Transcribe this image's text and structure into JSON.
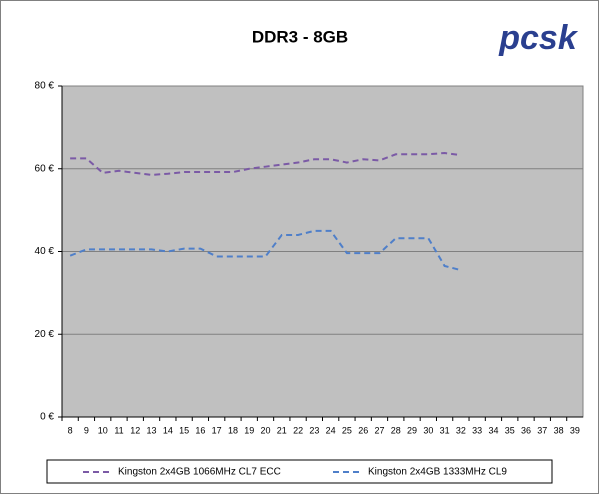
{
  "logo": "pcsk",
  "chart_data": {
    "type": "line",
    "title": "DDR3 - 8GB",
    "categories": [
      "8",
      "9",
      "10",
      "11",
      "12",
      "13",
      "14",
      "15",
      "16",
      "17",
      "18",
      "19",
      "20",
      "21",
      "22",
      "23",
      "24",
      "25",
      "26",
      "27",
      "28",
      "29",
      "30",
      "31",
      "32",
      "33",
      "34",
      "35",
      "36",
      "37",
      "38",
      "39"
    ],
    "series": [
      {
        "name": "Kingston 2x4GB 1066MHz CL7 ECC",
        "color": "#7b5aa6",
        "values": [
          62.5,
          62.5,
          59,
          59.5,
          59,
          58.5,
          58.8,
          59.2,
          59.2,
          59.2,
          59.2,
          60,
          60.5,
          61,
          61.5,
          62.3,
          62.3,
          61.5,
          62.3,
          62,
          63.5,
          63.5,
          63.5,
          63.8,
          63.3,
          null,
          null,
          null,
          null,
          null,
          null,
          null
        ]
      },
      {
        "name": "Kingston 2x4GB 1333MHz CL9",
        "color": "#4f7fc9",
        "values": [
          39,
          40.5,
          40.5,
          40.5,
          40.5,
          40.5,
          40,
          40.7,
          40.7,
          38.8,
          38.8,
          38.8,
          38.8,
          44,
          44,
          45,
          45,
          39.6,
          39.6,
          39.6,
          43.2,
          43.2,
          43.2,
          36.5,
          35.5,
          null,
          null,
          null,
          null,
          null,
          null,
          null
        ]
      }
    ],
    "ylim": [
      0,
      80
    ],
    "yticks": [
      {
        "value": 0,
        "label": "0 €"
      },
      {
        "value": 20,
        "label": "20 €"
      },
      {
        "value": 40,
        "label": "40 €"
      },
      {
        "value": 60,
        "label": "60 €"
      },
      {
        "value": 80,
        "label": "80 €"
      }
    ],
    "grid": true,
    "legend": "bottom"
  }
}
